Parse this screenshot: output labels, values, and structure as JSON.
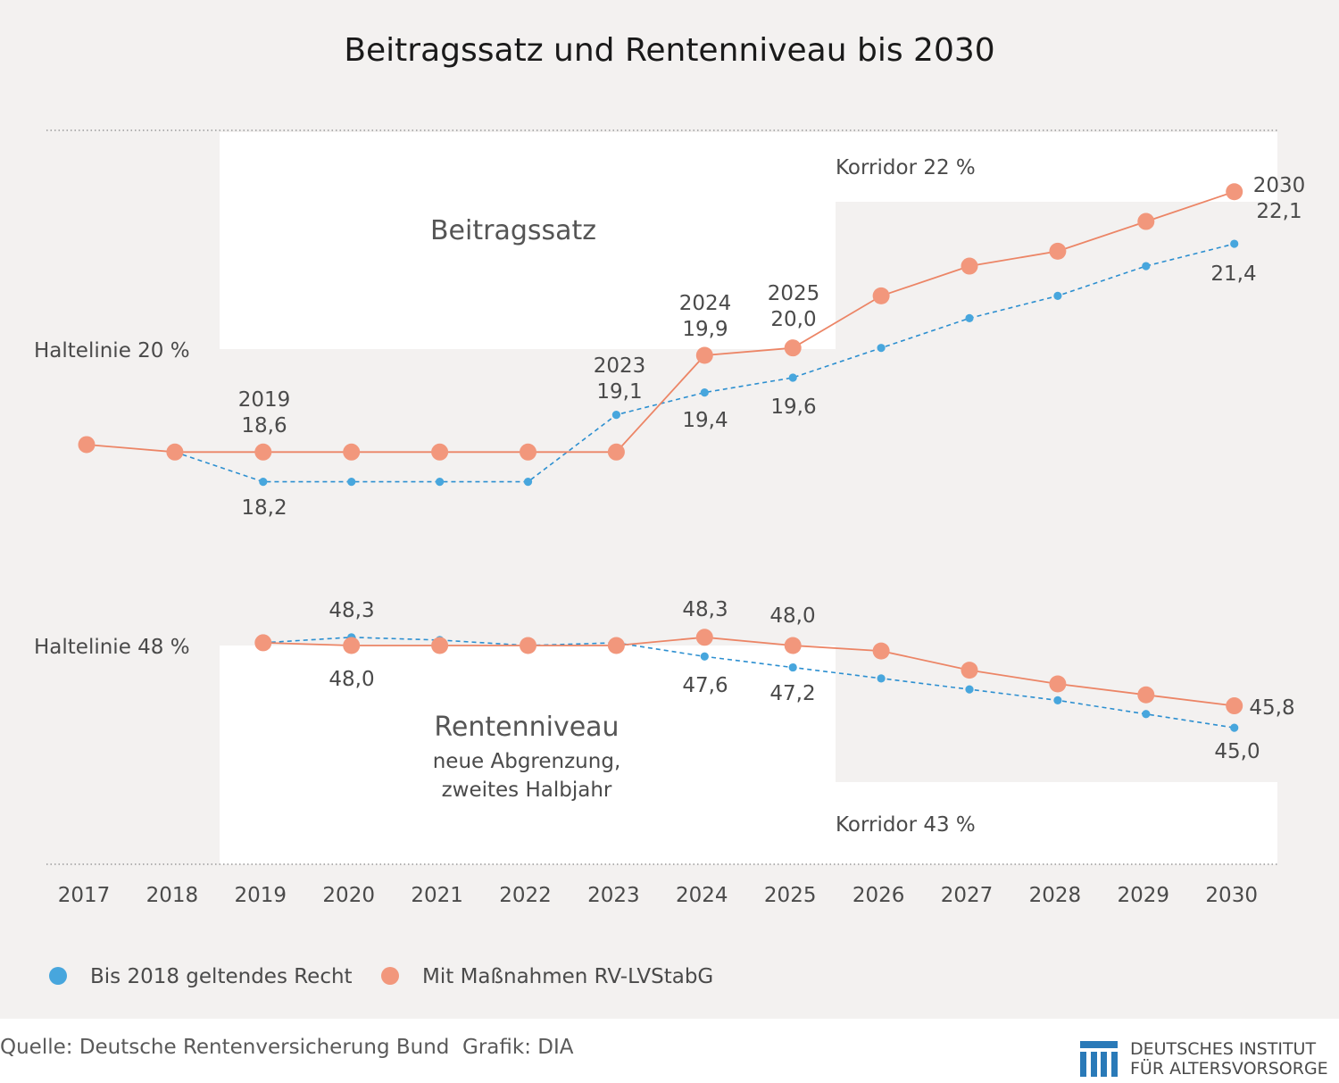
{
  "title": "Beitragssatz und Rentenniveau bis 2030",
  "footer": {
    "source": "Quelle: Deutsche Rentenversicherung Bund",
    "credit": "Grafik: DIA"
  },
  "logo": {
    "line1": "DEUTSCHES INSTITUT",
    "line2": "FÜR ALTERSVORSORGE"
  },
  "colors": {
    "blue": "#47a6dd",
    "orange": "#f2977c",
    "orange_line": "#ec8566",
    "panel_gray": "#f3f1f0",
    "white_band": "#ffffff",
    "text": "#4a4a4a"
  },
  "chart_data": {
    "type": "line",
    "x": [
      "2017",
      "2018",
      "2019",
      "2020",
      "2021",
      "2022",
      "2023",
      "2024",
      "2025",
      "2026",
      "2027",
      "2028",
      "2029",
      "2030"
    ],
    "legend": {
      "placement": "bottom-left",
      "entries": [
        "Bis 2018 geltendes Recht",
        "Mit Maßnahmen RV-LVStabG"
      ]
    },
    "panels": [
      {
        "name": "Beitragssatz",
        "label": "Beitragssatz",
        "haltelinie": {
          "label": "Haltelinie 20 %",
          "value": 20
        },
        "korridor": {
          "label": "Korridor 22 %",
          "value": 22
        },
        "series": [
          {
            "name": "Bis 2018 geltendes Recht",
            "color": "#47a6dd",
            "style": "dashed",
            "values": [
              null,
              18.6,
              18.2,
              18.2,
              18.2,
              18.2,
              19.1,
              19.4,
              19.6,
              20.0,
              20.4,
              20.7,
              21.1,
              21.4
            ]
          },
          {
            "name": "Mit Maßnahmen RV-LVStabG",
            "color": "#f2977c",
            "style": "solid",
            "values": [
              18.7,
              18.6,
              18.6,
              18.6,
              18.6,
              18.6,
              18.6,
              19.9,
              20.0,
              20.7,
              21.1,
              21.3,
              21.7,
              22.1
            ]
          }
        ],
        "annotations": [
          {
            "year": "2019",
            "text": [
              "2019",
              "18,6"
            ],
            "series": "Mit Maßnahmen RV-LVStabG"
          },
          {
            "year": "2019",
            "text": [
              "18,2"
            ],
            "series": "Bis 2018 geltendes Recht"
          },
          {
            "year": "2023",
            "text": [
              "2023",
              "19,1"
            ],
            "series": "Bis 2018 geltendes Recht"
          },
          {
            "year": "2024",
            "text": [
              "2024",
              "19,9"
            ],
            "series": "Mit Maßnahmen RV-LVStabG"
          },
          {
            "year": "2024",
            "text": [
              "19,4"
            ],
            "series": "Bis 2018 geltendes Recht"
          },
          {
            "year": "2025",
            "text": [
              "2025",
              "20,0"
            ],
            "series": "Mit Maßnahmen RV-LVStabG"
          },
          {
            "year": "2025",
            "text": [
              "19,6"
            ],
            "series": "Bis 2018 geltendes Recht"
          },
          {
            "year": "2030",
            "text": [
              "2030",
              "22,1"
            ],
            "series": "Mit Maßnahmen RV-LVStabG"
          },
          {
            "year": "2030",
            "text": [
              "21,4"
            ],
            "series": "Bis 2018 geltendes Recht"
          }
        ]
      },
      {
        "name": "Rentenniveau",
        "label": "Rentenniveau",
        "sublabel": [
          "neue Abgrenzung,",
          "zweites Halbjahr"
        ],
        "haltelinie": {
          "label": "Haltelinie 48 %",
          "value": 48
        },
        "korridor": {
          "label": "Korridor 43 %",
          "value": 43
        },
        "series": [
          {
            "name": "Bis 2018 geltendes Recht",
            "color": "#47a6dd",
            "style": "dashed",
            "values": [
              null,
              null,
              48.1,
              48.3,
              48.2,
              48.0,
              48.1,
              47.6,
              47.2,
              46.8,
              46.4,
              46.0,
              45.5,
              45.0
            ]
          },
          {
            "name": "Mit Maßnahmen RV-LVStabG",
            "color": "#f2977c",
            "style": "solid",
            "values": [
              null,
              null,
              48.1,
              48.0,
              48.0,
              48.0,
              48.0,
              48.3,
              48.0,
              47.8,
              47.1,
              46.6,
              46.2,
              45.8
            ]
          }
        ],
        "annotations": [
          {
            "year": "2020",
            "text": [
              "48,3"
            ],
            "series": "Bis 2018 geltendes Recht"
          },
          {
            "year": "2020",
            "text": [
              "48,0"
            ],
            "series": "Mit Maßnahmen RV-LVStabG"
          },
          {
            "year": "2024",
            "text": [
              "48,3"
            ],
            "series": "Mit Maßnahmen RV-LVStabG"
          },
          {
            "year": "2024",
            "text": [
              "47,6"
            ],
            "series": "Bis 2018 geltendes Recht"
          },
          {
            "year": "2025",
            "text": [
              "48,0"
            ],
            "series": "Mit Maßnahmen RV-LVStabG"
          },
          {
            "year": "2025",
            "text": [
              "47,2"
            ],
            "series": "Bis 2018 geltendes Recht"
          },
          {
            "year": "2030",
            "text": [
              "45,8"
            ],
            "series": "Mit Maßnahmen RV-LVStabG"
          },
          {
            "year": "2030",
            "text": [
              "45,0"
            ],
            "series": "Bis 2018 geltendes Recht"
          }
        ]
      }
    ]
  }
}
